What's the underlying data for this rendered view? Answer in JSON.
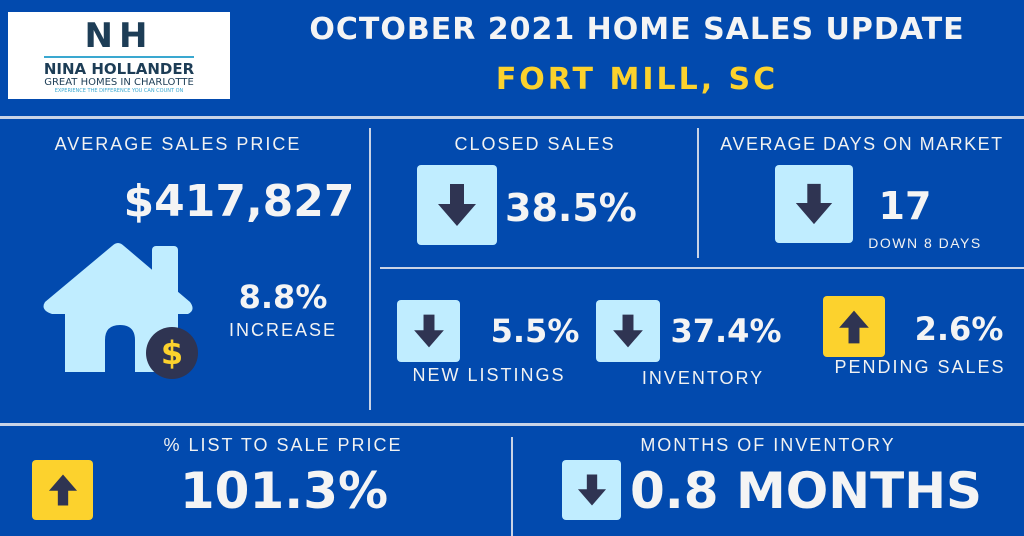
{
  "logo": {
    "initials": "NH",
    "name": "NINA HOLLANDER",
    "tagline": "GREAT HOMES IN CHARLOTTE",
    "slogan": "EXPERIENCE THE DIFFERENCE YOU CAN COUNT ON"
  },
  "header": {
    "title": "OCTOBER 2021 HOME SALES UPDATE",
    "location": "FORT MILL, SC"
  },
  "avg_price": {
    "label": "AVERAGE SALES PRICE",
    "value": "$417,827",
    "change": "8.8%",
    "change_label": "INCREASE",
    "icon": "house-dollar-icon"
  },
  "closed_sales": {
    "label": "CLOSED SALES",
    "value": "38.5%",
    "direction": "down"
  },
  "days_on_market": {
    "label": "AVERAGE DAYS ON MARKET",
    "value": "17",
    "sub": "DOWN 8 DAYS",
    "direction": "down"
  },
  "new_listings": {
    "label": "NEW LISTINGS",
    "value": "5.5%",
    "direction": "down"
  },
  "inventory": {
    "label": "INVENTORY",
    "value": "37.4%",
    "direction": "down"
  },
  "pending_sales": {
    "label": "PENDING SALES",
    "value": "2.6%",
    "direction": "up"
  },
  "list_to_sale": {
    "label": "% LIST TO SALE PRICE",
    "value": "101.3%",
    "direction": "up"
  },
  "months_inventory": {
    "label": "MONTHS OF INVENTORY",
    "value": "0.8 MONTHS",
    "direction": "down"
  },
  "colors": {
    "background": "#024aae",
    "down_box": "#c0edff",
    "up_box": "#fcd22d",
    "arrow": "#2f3452",
    "accent": "#fcd22d"
  }
}
